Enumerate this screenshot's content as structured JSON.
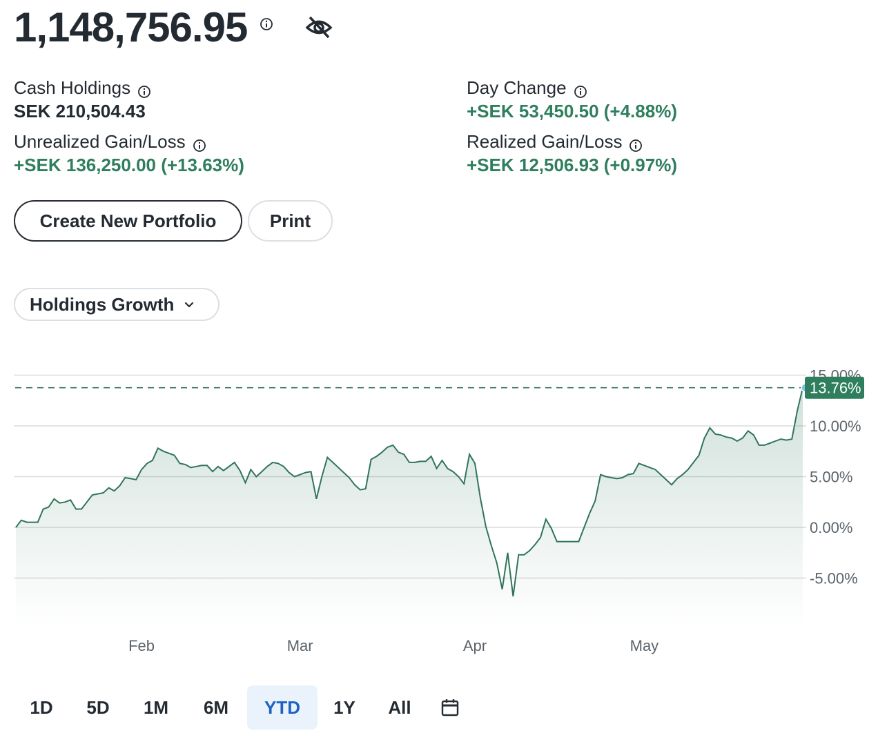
{
  "summary": {
    "total_value": "1,148,756.95",
    "cash_holdings": {
      "label": "Cash Holdings",
      "value": "SEK 210,504.43"
    },
    "day_change": {
      "label": "Day Change",
      "value": "+SEK 53,450.50 (+4.88%)"
    },
    "unrealized": {
      "label": "Unrealized Gain/Loss",
      "value": "+SEK 136,250.00 (+13.63%)"
    },
    "realized": {
      "label": "Realized Gain/Loss",
      "value": "+SEK 12,506.93 (+0.97%)"
    }
  },
  "buttons": {
    "create": "Create New Portfolio",
    "print": "Print"
  },
  "dropdown": {
    "label": "Holdings Growth"
  },
  "colors": {
    "accent_green": "#2f7f5f",
    "line": "#2f7559",
    "active_blue": "#1d63c4",
    "active_bg": "#eaf3fc"
  },
  "icons": {
    "info": "info-icon",
    "hide": "eye-slash-icon",
    "dropdown": "chevron-down-icon",
    "calendar": "calendar-icon"
  },
  "chart_data": {
    "type": "area",
    "y_unit": "%",
    "ylim": [
      -9.5,
      15.5
    ],
    "y_ticks": [
      15,
      10,
      5,
      0,
      -5
    ],
    "y_tick_labels": [
      "15.00%",
      "10.00%",
      "5.00%",
      "0.00%",
      "-5.00%"
    ],
    "x_tick_labels": [
      "Feb",
      "Mar",
      "Apr",
      "May"
    ],
    "grid": true,
    "current_value": 13.76,
    "current_label": "13.76%",
    "series": [
      {
        "values": [
          0.0,
          0.7,
          0.5,
          0.5,
          0.5,
          1.8,
          2.0,
          2.8,
          2.4,
          2.5,
          2.7,
          1.8,
          1.8,
          2.5,
          3.2,
          3.3,
          3.4,
          3.9,
          3.6,
          4.1,
          4.9,
          4.8,
          4.7,
          5.7,
          6.3,
          6.6,
          7.8,
          7.5,
          7.3,
          7.1,
          6.3,
          6.2,
          5.9,
          6.0,
          6.1,
          6.1,
          5.5,
          6.0,
          5.6,
          6.0,
          6.4,
          5.6,
          4.4,
          5.7,
          5.0,
          5.5,
          6.0,
          6.4,
          6.3,
          6.0,
          5.4,
          5.0,
          5.2,
          5.4,
          5.5,
          2.8,
          5.0,
          6.9,
          6.4,
          5.9,
          5.4,
          4.9,
          4.2,
          3.7,
          3.8,
          6.7,
          7.0,
          7.4,
          7.9,
          8.1,
          7.4,
          7.2,
          6.4,
          6.4,
          6.5,
          6.5,
          7.0,
          5.8,
          6.6,
          5.8,
          5.5,
          5.0,
          4.3,
          7.2,
          6.3,
          2.9,
          0.1,
          -1.8,
          -3.5,
          -6.1,
          -2.5,
          -6.8,
          -2.7,
          -2.7,
          -2.3,
          -1.7,
          -1.0,
          0.8,
          -0.1,
          -1.4,
          -1.4,
          -1.4,
          -1.4,
          -1.4,
          0.0,
          1.4,
          2.6,
          5.2,
          5.0,
          4.9,
          4.8,
          4.9,
          5.2,
          5.3,
          6.3,
          6.1,
          5.9,
          5.7,
          5.2,
          4.7,
          4.2,
          4.8,
          5.2,
          5.7,
          6.4,
          7.1,
          8.8,
          9.8,
          9.2,
          9.1,
          8.9,
          8.8,
          8.5,
          8.8,
          9.5,
          9.1,
          8.1,
          8.1,
          8.3,
          8.5,
          8.7,
          8.6,
          8.7,
          11.5,
          13.76
        ],
        "x_tick_positions": [
          23.0,
          52.0,
          84.0,
          115.0
        ]
      }
    ]
  },
  "ranges": {
    "items": [
      {
        "label": "1D",
        "active": false
      },
      {
        "label": "5D",
        "active": false
      },
      {
        "label": "1M",
        "active": false
      },
      {
        "label": "6M",
        "active": false
      },
      {
        "label": "YTD",
        "active": true
      },
      {
        "label": "1Y",
        "active": false
      },
      {
        "label": "All",
        "active": false
      }
    ]
  }
}
